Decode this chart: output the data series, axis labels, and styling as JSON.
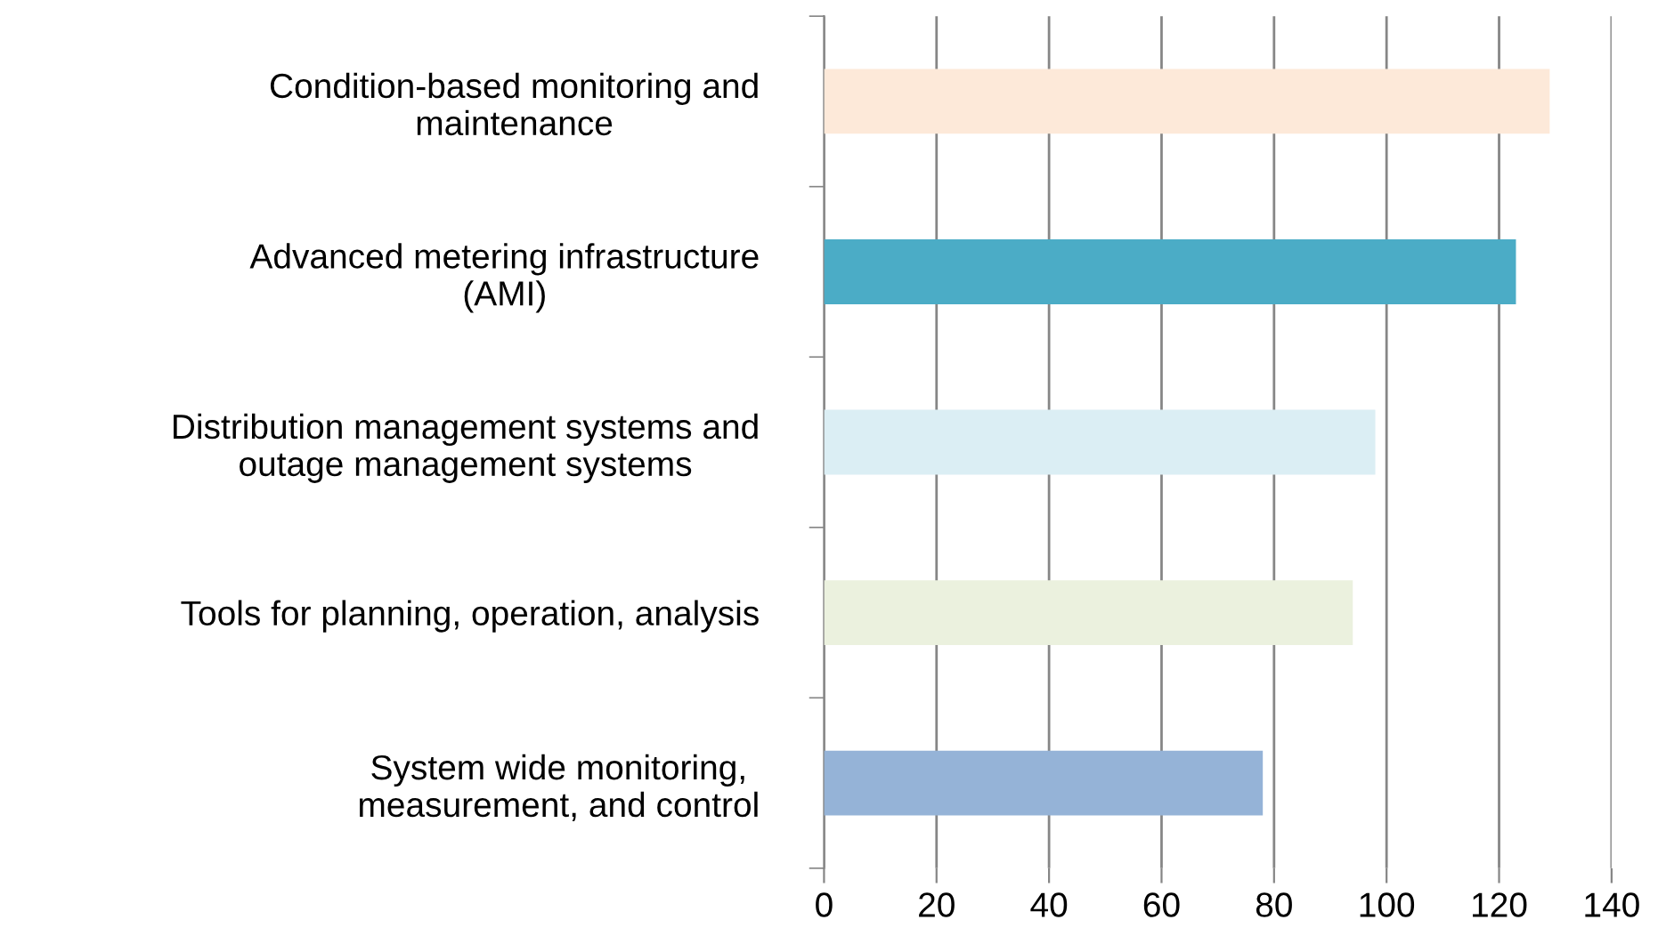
{
  "chart_data": {
    "type": "bar",
    "orientation": "horizontal",
    "categories": [
      "Condition-based monitoring and\nmaintenance",
      "Advanced metering infrastructure\n(AMI)",
      "Distribution management systems and\noutage management systems",
      "Tools for planning, operation, analysis",
      "System wide monitoring,\nmeasurement, and control"
    ],
    "values": [
      129,
      123,
      98,
      94,
      78
    ],
    "colors": [
      "#fde9d9",
      "#4bacc6",
      "#dbeef4",
      "#ebf1de",
      "#95b3d7"
    ],
    "xlim": [
      0,
      140
    ],
    "xticks": [
      0,
      20,
      40,
      60,
      80,
      100,
      120,
      140
    ],
    "grid": "x"
  }
}
